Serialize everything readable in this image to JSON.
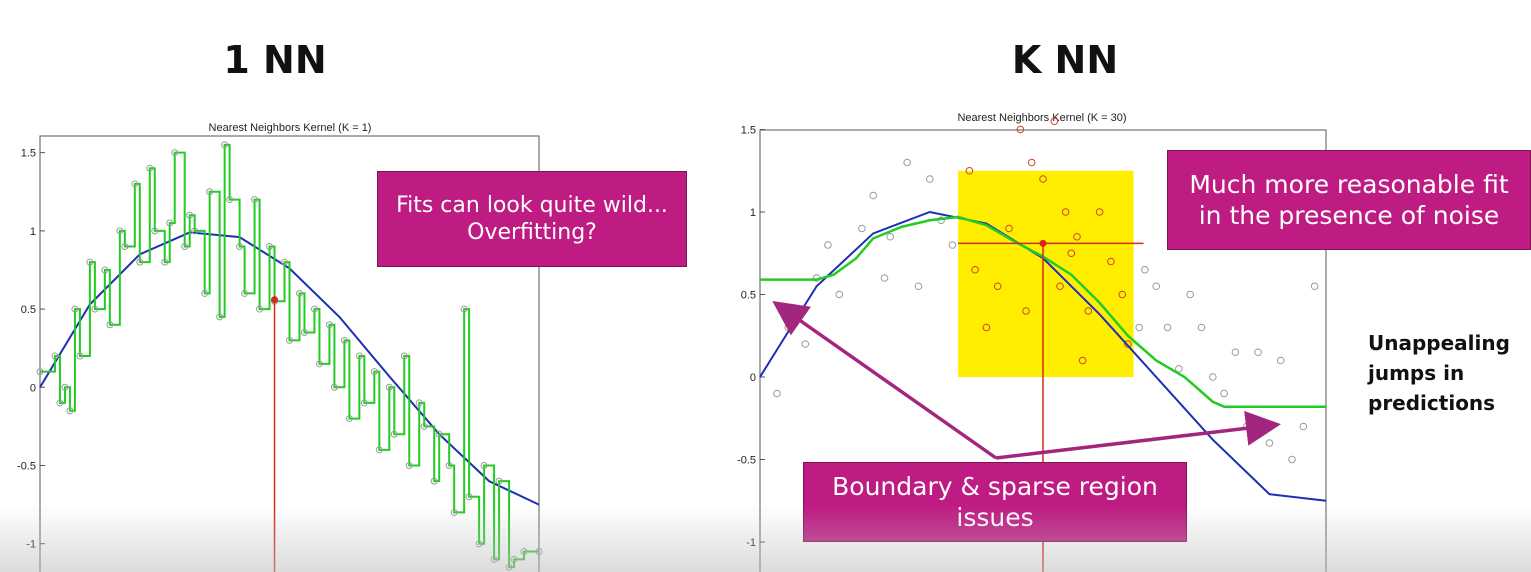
{
  "headings": {
    "left": "1 NN",
    "right": "K NN"
  },
  "callouts": {
    "left": [
      "Fits can look quite wild...",
      "Overfitting?"
    ],
    "right": [
      "Much more reasonable fit",
      "in the presence of noise"
    ],
    "bottom": [
      "Boundary & sparse region",
      "issues"
    ]
  },
  "side_note": [
    "Unappealing",
    "jumps in",
    "predictions"
  ],
  "colors": {
    "fit": "#22cc22",
    "truth": "#1c2fb5",
    "query": "#d42a1a",
    "window": "#ffee00",
    "callout": "#be1b83",
    "arrow": "#a3267e"
  },
  "chart_data": [
    {
      "type": "line",
      "title": "Nearest Neighbors Kernel (K = 1)",
      "xlabel": "",
      "ylabel": "",
      "xlim": [
        0,
        1
      ],
      "ylim": [
        -1.2,
        1.6
      ],
      "yticks": [
        -1,
        -0.5,
        0,
        0.5,
        1,
        1.5
      ],
      "grid": false,
      "series": [
        {
          "role": "true-function",
          "x": [
            0,
            0.1,
            0.2,
            0.3,
            0.4,
            0.5,
            0.6,
            0.7,
            0.8,
            0.9,
            1.0
          ],
          "y": [
            0,
            0.53,
            0.85,
            0.99,
            0.96,
            0.76,
            0.45,
            0.07,
            -0.3,
            -0.6,
            -0.75
          ]
        },
        {
          "role": "1nn-fit",
          "x": [
            0,
            0.03,
            0.04,
            0.05,
            0.06,
            0.07,
            0.08,
            0.1,
            0.11,
            0.13,
            0.14,
            0.16,
            0.17,
            0.19,
            0.2,
            0.22,
            0.23,
            0.25,
            0.26,
            0.27,
            0.29,
            0.3,
            0.31,
            0.33,
            0.34,
            0.36,
            0.37,
            0.38,
            0.4,
            0.41,
            0.43,
            0.44,
            0.46,
            0.47,
            0.49,
            0.5,
            0.52,
            0.53,
            0.55,
            0.56,
            0.58,
            0.59,
            0.61,
            0.62,
            0.64,
            0.65,
            0.67,
            0.68,
            0.7,
            0.71,
            0.73,
            0.74,
            0.76,
            0.77,
            0.79,
            0.8,
            0.82,
            0.83,
            0.85,
            0.86,
            0.88,
            0.89,
            0.91,
            0.92,
            0.94,
            0.95,
            0.97,
            1.0
          ],
          "y": [
            0.1,
            0.2,
            -0.1,
            0.0,
            -0.15,
            0.5,
            0.2,
            0.8,
            0.5,
            0.75,
            0.4,
            1.0,
            0.9,
            1.3,
            0.8,
            1.4,
            1.0,
            0.8,
            1.05,
            1.5,
            0.9,
            1.1,
            1.0,
            0.6,
            1.25,
            0.45,
            1.55,
            1.2,
            0.9,
            0.6,
            1.2,
            0.5,
            0.9,
            0.55,
            0.8,
            0.3,
            0.6,
            0.35,
            0.5,
            0.15,
            0.4,
            0.0,
            0.3,
            -0.2,
            0.2,
            -0.1,
            0.1,
            -0.4,
            0.0,
            -0.3,
            0.2,
            -0.5,
            -0.1,
            -0.25,
            -0.6,
            -0.3,
            -0.5,
            -0.8,
            0.5,
            -0.7,
            -1.0,
            -0.5,
            -1.1,
            -0.6,
            -1.15,
            -1.1,
            -1.05,
            -1.05
          ]
        },
        {
          "role": "query-point",
          "x": [
            0.47
          ],
          "y": [
            0.56
          ]
        }
      ]
    },
    {
      "type": "line",
      "title": "Nearest Neighbors Kernel (K = 30)",
      "xlabel": "",
      "ylabel": "",
      "xlim": [
        0,
        1
      ],
      "ylim": [
        -1.2,
        1.6
      ],
      "yticks": [
        -1,
        -0.5,
        0,
        0.5,
        1,
        1.5
      ],
      "grid": false,
      "window": {
        "x": [
          0.35,
          0.66
        ],
        "y": [
          0,
          1.25
        ]
      },
      "series": [
        {
          "role": "true-function",
          "x": [
            0,
            0.1,
            0.2,
            0.3,
            0.4,
            0.5,
            0.6,
            0.7,
            0.8,
            0.9,
            1.0
          ],
          "y": [
            0,
            0.55,
            0.87,
            1.0,
            0.93,
            0.72,
            0.38,
            0.0,
            -0.38,
            -0.71,
            -0.75
          ]
        },
        {
          "role": "knn-fit",
          "x": [
            0,
            0.1,
            0.13,
            0.17,
            0.2,
            0.25,
            0.3,
            0.35,
            0.4,
            0.45,
            0.5,
            0.55,
            0.6,
            0.65,
            0.7,
            0.75,
            0.8,
            0.82,
            1.0
          ],
          "y": [
            0.59,
            0.59,
            0.62,
            0.72,
            0.84,
            0.91,
            0.95,
            0.97,
            0.92,
            0.82,
            0.73,
            0.62,
            0.45,
            0.25,
            0.1,
            0.0,
            -0.15,
            -0.18,
            -0.18
          ]
        },
        {
          "role": "query-point",
          "x": [
            0.5
          ],
          "y": [
            0.81
          ]
        },
        {
          "role": "data-points",
          "x": [
            0.03,
            0.05,
            0.08,
            0.1,
            0.12,
            0.14,
            0.18,
            0.2,
            0.22,
            0.23,
            0.26,
            0.28,
            0.3,
            0.32,
            0.34,
            0.37,
            0.38,
            0.4,
            0.42,
            0.44,
            0.46,
            0.47,
            0.48,
            0.5,
            0.52,
            0.53,
            0.54,
            0.55,
            0.56,
            0.57,
            0.58,
            0.6,
            0.62,
            0.64,
            0.65,
            0.67,
            0.68,
            0.7,
            0.72,
            0.74,
            0.76,
            0.78,
            0.8,
            0.82,
            0.84,
            0.86,
            0.88,
            0.9,
            0.92,
            0.94,
            0.96,
            0.98
          ],
          "y": [
            -0.1,
            0.3,
            0.2,
            0.6,
            0.8,
            0.5,
            0.9,
            1.1,
            0.6,
            0.85,
            1.3,
            0.55,
            1.2,
            0.95,
            0.8,
            1.25,
            0.65,
            0.3,
            0.55,
            0.9,
            1.5,
            0.4,
            1.3,
            1.2,
            1.55,
            0.55,
            1.0,
            0.75,
            0.85,
            0.1,
            0.4,
            1.0,
            0.7,
            0.5,
            0.2,
            0.3,
            0.65,
            0.55,
            0.3,
            0.05,
            0.5,
            0.3,
            0.0,
            -0.1,
            0.15,
            -0.3,
            0.15,
            -0.4,
            0.1,
            -0.5,
            -0.3,
            0.55
          ]
        }
      ]
    }
  ]
}
